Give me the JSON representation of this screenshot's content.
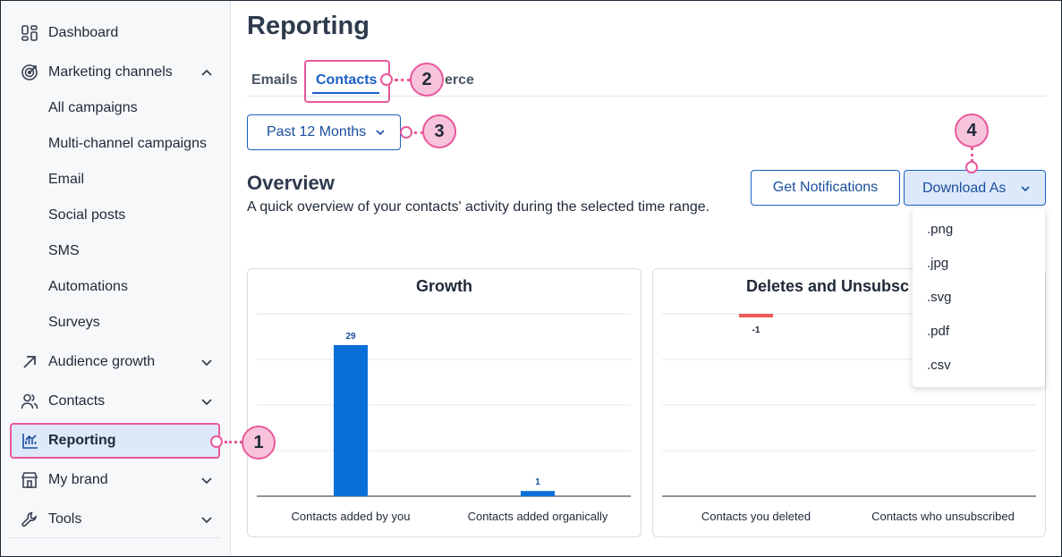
{
  "sidebar": {
    "items": [
      {
        "label": "Dashboard",
        "icon": "dashboard-icon"
      },
      {
        "label": "Marketing channels",
        "icon": "target-icon",
        "expanded": true
      },
      {
        "label": "Audience growth",
        "icon": "arrow-up-right-icon"
      },
      {
        "label": "Contacts",
        "icon": "people-icon"
      },
      {
        "label": "Reporting",
        "icon": "chart-icon",
        "active": true
      },
      {
        "label": "My brand",
        "icon": "store-icon"
      },
      {
        "label": "Tools",
        "icon": "wrench-icon"
      }
    ],
    "sub_items": [
      "All campaigns",
      "Multi-channel campaigns",
      "Email",
      "Social posts",
      "SMS",
      "Automations",
      "Surveys"
    ]
  },
  "main": {
    "title": "Reporting",
    "tabs": [
      {
        "label": "Emails"
      },
      {
        "label": "Contacts",
        "active": true
      },
      {
        "label": "erce"
      }
    ],
    "range_button": "Past 12 Months",
    "overview": {
      "title": "Overview",
      "subtitle": "A quick overview of your contacts' activity during the selected time range."
    },
    "buttons": {
      "notifications": "Get Notifications",
      "download": "Download As"
    },
    "download_options": [
      ".png",
      ".jpg",
      ".svg",
      ".pdf",
      ".csv"
    ]
  },
  "callouts": [
    "1",
    "2",
    "3",
    "4"
  ],
  "colors": {
    "accent": "#1a5fc7",
    "bar_blue": "#0a6fd8",
    "bar_red": "#f05a5a",
    "highlight_pink": "#e8589b",
    "callout_fill": "#f8c4dc"
  },
  "chart_data": [
    {
      "type": "bar",
      "title": "Growth",
      "categories": [
        "Contacts added by you",
        "Contacts added organically"
      ],
      "values": [
        29,
        1
      ],
      "value_labels": [
        "29",
        "1"
      ],
      "ylim": [
        0,
        35
      ],
      "grid": true,
      "color": "#0a6fd8"
    },
    {
      "type": "bar",
      "title": "Deletes and Unsubsc",
      "categories": [
        "Contacts you deleted",
        "Contacts who unsubscribed"
      ],
      "values": [
        -1,
        0
      ],
      "value_labels": [
        "-1",
        ""
      ],
      "grid": true,
      "color": "#f05a5a"
    }
  ]
}
